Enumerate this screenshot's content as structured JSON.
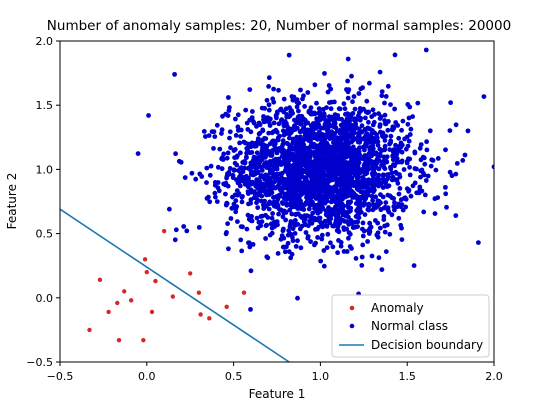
{
  "chart_data": {
    "type": "scatter",
    "title": "Number of anomaly samples: 20,  Number of normal samples: 20000",
    "xlabel": "Feature 1",
    "ylabel": "Feature 2",
    "xlim": [
      -0.5,
      2.0
    ],
    "ylim": [
      -0.5,
      2.0
    ],
    "xticks": [
      "−0.5",
      "0.0",
      "0.5",
      "1.0",
      "1.5",
      "2.0"
    ],
    "yticks": [
      "−0.5",
      "0.0",
      "0.5",
      "1.0",
      "1.5",
      "2.0"
    ],
    "grid": false,
    "legend_position": "bottom-right",
    "series": [
      {
        "name": "Anomaly",
        "marker": "dot",
        "color": "#d62728",
        "points": [
          [
            -0.27,
            0.14
          ],
          [
            -0.22,
            -0.11
          ],
          [
            -0.17,
            -0.04
          ],
          [
            -0.13,
            0.05
          ],
          [
            -0.09,
            -0.02
          ],
          [
            -0.33,
            -0.25
          ],
          [
            -0.16,
            -0.33
          ],
          [
            -0.02,
            -0.33
          ],
          [
            -0.01,
            0.3
          ],
          [
            0.0,
            0.2
          ],
          [
            0.05,
            0.13
          ],
          [
            0.03,
            -0.11
          ],
          [
            0.1,
            0.52
          ],
          [
            0.15,
            0.01
          ],
          [
            0.25,
            0.19
          ],
          [
            0.3,
            0.04
          ],
          [
            0.31,
            -0.13
          ],
          [
            0.36,
            -0.16
          ],
          [
            0.46,
            -0.07
          ],
          [
            0.56,
            0.04
          ]
        ]
      },
      {
        "name": "Normal class",
        "marker": "dot",
        "color": "#0000cc",
        "center": [
          1.0,
          1.0
        ],
        "count": 20000,
        "outliers": [
          [
            0.01,
            1.42
          ],
          [
            0.13,
            0.69
          ],
          [
            0.16,
            1.74
          ],
          [
            0.17,
            0.53
          ],
          [
            1.75,
            1.52
          ],
          [
            1.82,
            1.07
          ],
          [
            1.78,
            0.64
          ],
          [
            1.91,
            0.43
          ],
          [
            2.0,
            1.02
          ],
          [
            0.82,
            1.89
          ],
          [
            1.16,
            1.86
          ],
          [
            1.22,
            0.03
          ],
          [
            0.99,
            0.55
          ],
          [
            1.61,
            1.93
          ],
          [
            0.47,
            1.56
          ],
          [
            0.6,
            0.21
          ],
          [
            0.26,
            0.97
          ],
          [
            1.85,
            1.3
          ],
          [
            1.72,
            0.86
          ],
          [
            0.43,
            1.28
          ]
        ]
      },
      {
        "name": "Decision boundary",
        "type": "line",
        "color": "#1f77b4",
        "points": [
          [
            -0.5,
            0.69
          ],
          [
            0.82,
            -0.5
          ]
        ]
      }
    ]
  }
}
